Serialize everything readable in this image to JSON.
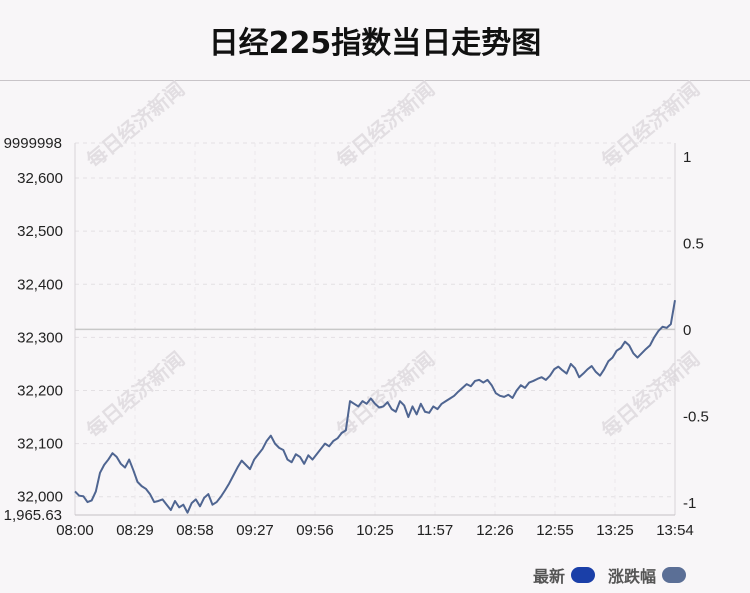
{
  "title": "日经225指数当日走势图",
  "watermark": "每日经济新闻",
  "legend": [
    {
      "label": "最新",
      "color": "#1a3fa8"
    },
    {
      "label": "涨跌幅",
      "color": "#5b6f96"
    }
  ],
  "chart_data": {
    "type": "line",
    "series_color": "#4f6591",
    "baseline_color": "#c8c8c8",
    "x_tick_labels": [
      "08:00",
      "08:29",
      "08:58",
      "09:27",
      "09:56",
      "10:25",
      "11:57",
      "12:26",
      "12:55",
      "13:25",
      "13:54"
    ],
    "y_left_ticks": [
      32000,
      32100,
      32200,
      32300,
      32400,
      32500,
      32600
    ],
    "y_left_tick_labels": [
      "32,000",
      "32,100",
      "32,200",
      "32,300",
      "32,400",
      "32,500",
      "32,600"
    ],
    "y_left_min_label": "1,965.63",
    "y_left_max_label": "9999998",
    "y_left_range": [
      31965.63,
      32666.0
    ],
    "y_right_ticks": [
      -1,
      -0.5,
      0,
      0.5,
      1
    ],
    "y_right_tick_labels": [
      "-1",
      "-0.5",
      "0",
      "0.5",
      "1"
    ],
    "y_right_range": [
      -1.07,
      1.08
    ],
    "baseline_value": 32315,
    "grid": true,
    "values": [
      32010,
      32002,
      32001,
      31990,
      31993,
      32010,
      32045,
      32060,
      32070,
      32082,
      32075,
      32062,
      32055,
      32070,
      32050,
      32028,
      32020,
      32015,
      32005,
      31990,
      31992,
      31995,
      31985,
      31975,
      31992,
      31980,
      31985,
      31970,
      31988,
      31995,
      31982,
      31998,
      32005,
      31985,
      31990,
      32000,
      32012,
      32025,
      32040,
      32055,
      32068,
      32060,
      32052,
      32070,
      32080,
      32090,
      32105,
      32115,
      32100,
      32092,
      32088,
      32070,
      32065,
      32080,
      32075,
      32062,
      32078,
      32070,
      32080,
      32090,
      32100,
      32095,
      32105,
      32110,
      32120,
      32125,
      32180,
      32175,
      32170,
      32180,
      32175,
      32185,
      32175,
      32168,
      32170,
      32178,
      32165,
      32160,
      32180,
      32172,
      32150,
      32170,
      32155,
      32175,
      32160,
      32158,
      32170,
      32165,
      32175,
      32180,
      32185,
      32190,
      32198,
      32205,
      32212,
      32208,
      32218,
      32220,
      32215,
      32220,
      32210,
      32195,
      32190,
      32188,
      32192,
      32186,
      32200,
      32210,
      32205,
      32215,
      32218,
      32222,
      32225,
      32220,
      32228,
      32240,
      32245,
      32238,
      32232,
      32250,
      32242,
      32225,
      32232,
      32240,
      32246,
      32235,
      32228,
      32240,
      32255,
      32262,
      32275,
      32280,
      32292,
      32285,
      32270,
      32262,
      32270,
      32278,
      32285,
      32300,
      32312,
      32320,
      32318,
      32325,
      32370
    ]
  }
}
